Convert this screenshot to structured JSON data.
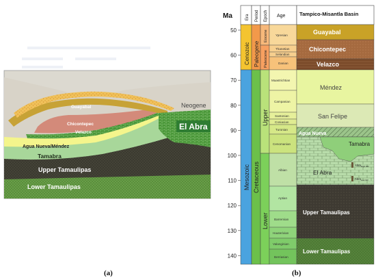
{
  "panel_a": {
    "caption": "(a)",
    "labels": {
      "neogene": "Neogene",
      "guayabal": "Guayabal",
      "chicontepec": "Chicontepec",
      "velazco": "Velazco",
      "agua_nueva": "Agua Nueva/Méndez",
      "tamabra": "Tamabra",
      "upper_tamaulipas": "Upper Tamaulipas",
      "lower_tamaulipas": "Lower Tamaulipas",
      "el_abra": "El Abra"
    }
  },
  "panel_b": {
    "caption": "(b)",
    "headers": {
      "ma": "Ma",
      "era": "Era",
      "period": "Period",
      "epoch": "Epoch",
      "age": "Age",
      "basin": "Tampico-Misantla Basin"
    },
    "ticks": [
      "50",
      "60",
      "70",
      "80",
      "90",
      "100",
      "110",
      "120",
      "130",
      "140"
    ],
    "eras": {
      "cenozoic": "Cenozoic",
      "mesozoic": "Mesozoic"
    },
    "periods": {
      "paleogene": "Paleogene",
      "cretaceous": "Cretaceous"
    },
    "epochs": {
      "eocene": "Eocene",
      "paleocene": "Paleocene",
      "upper": "Upper",
      "lower": "Lower"
    },
    "ages": [
      "Ypresian",
      "Thanetian",
      "Selandian",
      "Danian",
      "Maastrichtian",
      "Campanian",
      "Santonian",
      "Coniacian",
      "Turonian",
      "Cenomanian",
      "Albian",
      "Aptian",
      "Barremian",
      "Hauterivian",
      "Valanginian",
      "Berriasian"
    ],
    "formations": {
      "guayabal": "Guayabal",
      "chicontepec": "Chicontepec",
      "velazco": "Velazco",
      "mendez": "Méndez",
      "san_felipe": "San Felipe",
      "agua_nueva": "Agua Nueva",
      "tamabra": "Tamabra",
      "el_abra": "El Abra",
      "upper_tamaulipas": "Upper Tamaulipas",
      "lower_tamaulipas": "Lower Tamaulipas",
      "abra_high_main": "Abra",
      "abra_high_sub": "High GR",
      "abra_low_main": "Abra",
      "abra_low_sub": "Low GR"
    },
    "colors": {
      "cenozoic": "#f4c430",
      "mesozoic": "#4aa3df",
      "paleogene": "#f2994a",
      "cretaceous": "#6cc04a",
      "guayabal": "#c9a227",
      "chicontepec": "#a56a3f",
      "velazco": "#7a4a2a",
      "mendez": "#e8f5a0",
      "san_felipe": "#dce9b5",
      "agua_nueva": "#9bc48a",
      "el_abra": "#b8dcaa",
      "upper_tamaulipas": "#3e3a32",
      "lower_tamaulipas": "#4d7a34"
    }
  }
}
